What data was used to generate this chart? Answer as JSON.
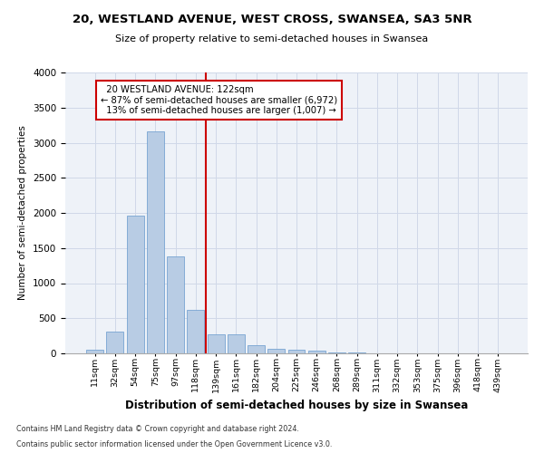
{
  "title1": "20, WESTLAND AVENUE, WEST CROSS, SWANSEA, SA3 5NR",
  "title2": "Size of property relative to semi-detached houses in Swansea",
  "xlabel": "Distribution of semi-detached houses by size in Swansea",
  "ylabel": "Number of semi-detached properties",
  "footnote1": "Contains HM Land Registry data © Crown copyright and database right 2024.",
  "footnote2": "Contains public sector information licensed under the Open Government Licence v3.0.",
  "annotation_line1": "  20 WESTLAND AVENUE: 122sqm",
  "annotation_line2": "← 87% of semi-detached houses are smaller (6,972)",
  "annotation_line3": "  13% of semi-detached houses are larger (1,007) →",
  "bar_color": "#b8cce4",
  "bar_edge_color": "#6699cc",
  "vline_color": "#cc0000",
  "annotation_box_color": "#cc0000",
  "grid_color": "#d0d8e8",
  "background_color": "#eef2f8",
  "categories": [
    "11sqm",
    "32sqm",
    "54sqm",
    "75sqm",
    "97sqm",
    "118sqm",
    "139sqm",
    "161sqm",
    "182sqm",
    "204sqm",
    "225sqm",
    "246sqm",
    "268sqm",
    "289sqm",
    "311sqm",
    "332sqm",
    "353sqm",
    "375sqm",
    "396sqm",
    "418sqm",
    "439sqm"
  ],
  "values": [
    50,
    305,
    1960,
    3160,
    1380,
    620,
    270,
    265,
    110,
    70,
    50,
    40,
    18,
    9,
    5,
    3,
    2,
    2,
    1,
    1,
    1
  ],
  "ylim": [
    0,
    4000
  ],
  "yticks": [
    0,
    500,
    1000,
    1500,
    2000,
    2500,
    3000,
    3500,
    4000
  ],
  "vline_x": 5.5
}
